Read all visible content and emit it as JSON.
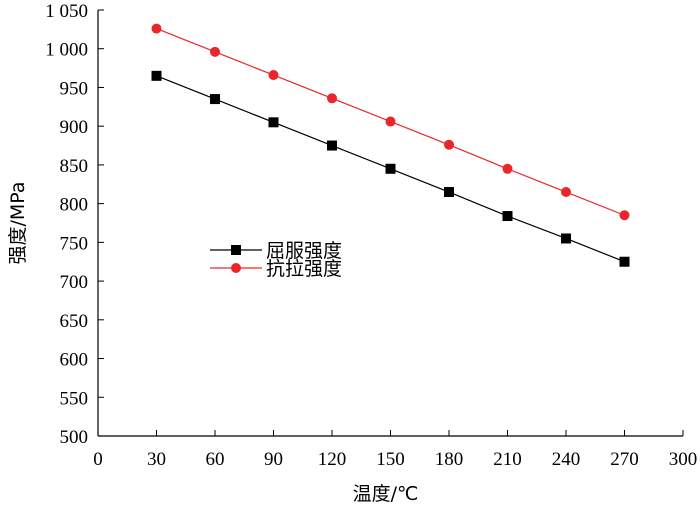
{
  "chart_data": {
    "type": "line",
    "title": "",
    "xlabel": "温度/℃",
    "ylabel": "强度/MPa",
    "xlim": [
      0,
      300
    ],
    "ylim": [
      500,
      1050
    ],
    "x_ticks": [
      0,
      30,
      60,
      90,
      120,
      150,
      180,
      210,
      240,
      270,
      300
    ],
    "x_tick_labels": [
      "0",
      "30",
      "60",
      "90",
      "120",
      "150",
      "180",
      "210",
      "240",
      "270",
      "300"
    ],
    "y_ticks": [
      500,
      550,
      600,
      650,
      700,
      750,
      800,
      850,
      900,
      950,
      1000,
      1050
    ],
    "y_tick_labels": [
      "500",
      "550",
      "600",
      "650",
      "700",
      "750",
      "800",
      "850",
      "900",
      "950",
      "1 000",
      "1 050"
    ],
    "grid": false,
    "legend_position": "center-left",
    "series": [
      {
        "name": "屈服强度",
        "color": "#000000",
        "marker": "square",
        "x": [
          30,
          60,
          90,
          120,
          150,
          180,
          210,
          240,
          270
        ],
        "y": [
          965,
          935,
          905,
          875,
          845,
          815,
          784,
          755,
          725
        ]
      },
      {
        "name": "抗拉强度",
        "color": "#e8262b",
        "marker": "circle",
        "x": [
          30,
          60,
          90,
          120,
          150,
          180,
          210,
          240,
          270
        ],
        "y": [
          1026,
          996,
          966,
          936,
          906,
          876,
          845,
          815,
          785
        ]
      }
    ]
  }
}
